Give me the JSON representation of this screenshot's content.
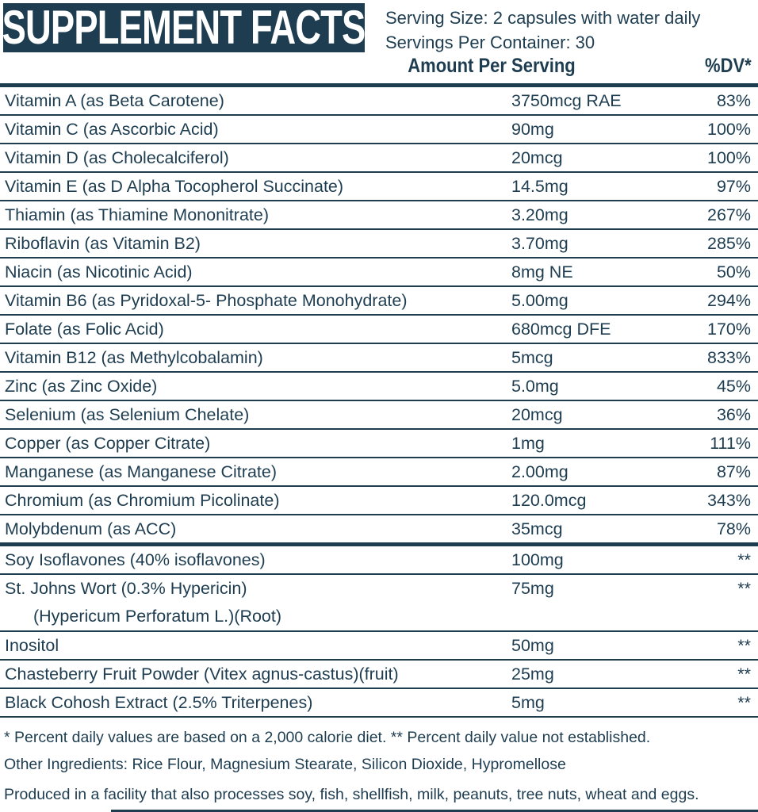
{
  "colors": {
    "navy": "#1e3d50"
  },
  "header": {
    "title": "SUPPLEMENT FACTS",
    "serving_size": "Serving Size: 2 capsules with water daily",
    "servings_per_container": "Servings Per Container: 30"
  },
  "columns": {
    "amount_header": "Amount Per Serving",
    "dv_header": "%DV*"
  },
  "table": {
    "rows": [
      {
        "name": "Vitamin A (as Beta Carotene)",
        "amount": "3750mcg RAE",
        "dv": "83%"
      },
      {
        "name": "Vitamin C (as Ascorbic Acid)",
        "amount": "90mg",
        "dv": "100%"
      },
      {
        "name": "Vitamin D (as Cholecalciferol)",
        "amount": "20mcg",
        "dv": "100%"
      },
      {
        "name": "Vitamin E (as D Alpha Tocopherol Succinate)",
        "amount": "14.5mg",
        "dv": "97%"
      },
      {
        "name": "Thiamin (as Thiamine Mononitrate)",
        "amount": "3.20mg",
        "dv": "267%"
      },
      {
        "name": "Riboflavin (as Vitamin B2)",
        "amount": "3.70mg",
        "dv": "285%"
      },
      {
        "name": "Niacin (as Nicotinic Acid)",
        "amount": "8mg NE",
        "dv": "50%"
      },
      {
        "name": "Vitamin B6 (as Pyridoxal-5- Phosphate Monohydrate)",
        "amount": "5.00mg",
        "dv": "294%"
      },
      {
        "name": "Folate (as Folic Acid)",
        "amount": "680mcg DFE",
        "dv": "170%"
      },
      {
        "name": "Vitamin B12 (as Methylcobalamin)",
        "amount": "5mcg",
        "dv": "833%"
      },
      {
        "name": "Zinc (as Zinc Oxide)",
        "amount": "5.0mg",
        "dv": "45%"
      },
      {
        "name": "Selenium (as Selenium Chelate)",
        "amount": "20mcg",
        "dv": "36%"
      },
      {
        "name": "Copper (as Copper Citrate)",
        "amount": "1mg",
        "dv": "111%"
      },
      {
        "name": "Manganese (as Manganese Citrate)",
        "amount": "2.00mg",
        "dv": "87%"
      },
      {
        "name": "Chromium (as Chromium Picolinate)",
        "amount": "120.0mcg",
        "dv": "343%"
      },
      {
        "name": "Molybdenum (as ACC)",
        "amount": "35mcg",
        "dv": "78%",
        "divider": "thick"
      },
      {
        "name": "Soy Isoflavones (40% isoflavones)",
        "amount": "100mg",
        "dv": "**"
      },
      {
        "name": "St. Johns Wort (0.3% Hypericin)",
        "name2": "(Hypericum Perforatum L.)(Root)",
        "amount": "75mg",
        "dv": "**"
      },
      {
        "name": "Inositol",
        "amount": "50mg",
        "dv": "**"
      },
      {
        "name": "Chasteberry Fruit Powder (Vitex agnus-castus)(fruit)",
        "amount": "25mg",
        "dv": "**"
      },
      {
        "name": "Black Cohosh Extract (2.5% Triterpenes)",
        "amount": "5mg",
        "dv": "**"
      }
    ]
  },
  "footnotes": {
    "daily_value_note": "* Percent daily values are based on a 2,000 calorie diet. ** Percent daily value not established.",
    "other_ingredients": "Other Ingredients: Rice Flour, Magnesium Stearate, Silicon Dioxide, Hypromellose",
    "allergen_statement": "Produced in a facility that also processes soy, fish, shellfish, milk, peanuts, tree nuts, wheat and eggs."
  }
}
